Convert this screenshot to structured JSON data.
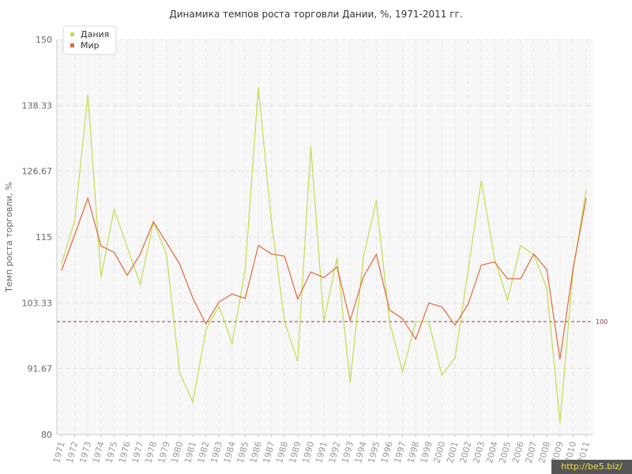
{
  "chart_data": {
    "type": "line",
    "title": "Динамика темпов роста торговли Дании, %, 1971-2011 гг.",
    "ylabel": "Темп роста торговли, %",
    "xlabel": "",
    "ylim": [
      80,
      150
    ],
    "yticks": [
      "80",
      "91.67",
      "103.33",
      "115",
      "126.67",
      "138.33",
      "150"
    ],
    "ytick_values": [
      80,
      91.67,
      103.33,
      115,
      126.67,
      138.33,
      150
    ],
    "grid": true,
    "legend_position": "top-left",
    "reference_line": {
      "value": 100,
      "label": "100",
      "color": "#8b3a4a"
    },
    "x": [
      "1971",
      "1972",
      "1973",
      "1974",
      "1975",
      "1976",
      "1977",
      "1978",
      "1979",
      "1980",
      "1981",
      "1982",
      "1983",
      "1984",
      "1985",
      "1986",
      "1987",
      "1988",
      "1989",
      "1990",
      "1991",
      "1992",
      "1993",
      "1994",
      "1995",
      "1996",
      "1997",
      "1998",
      "1999",
      "2000",
      "2001",
      "2002",
      "2003",
      "2004",
      "2005",
      "2006",
      "2007",
      "2008",
      "2009",
      "2010",
      "2011"
    ],
    "series": [
      {
        "name": "Дания",
        "color": "#c3dd4e",
        "values": [
          110.3,
          117.9,
          140.3,
          107.9,
          119.9,
          113.2,
          106.6,
          117.7,
          111.9,
          91.0,
          85.7,
          98.5,
          102.8,
          96.1,
          109.3,
          141.5,
          117.7,
          100.0,
          92.9,
          131.1,
          100.0,
          111.3,
          89.2,
          111.3,
          121.5,
          100.0,
          91.1,
          100.0,
          100.0,
          90.5,
          93.6,
          109.1,
          125.0,
          111.3,
          103.8,
          113.5,
          111.9,
          105.9,
          82.0,
          109.1,
          123.4
        ]
      },
      {
        "name": "Мир",
        "color": "#e0693a",
        "values": [
          109.1,
          115.4,
          121.9,
          113.4,
          112.3,
          108.2,
          112.0,
          117.7,
          114.0,
          110.2,
          104.2,
          99.6,
          103.5,
          104.9,
          104.1,
          113.5,
          112.0,
          111.6,
          104.0,
          108.8,
          107.8,
          109.7,
          100.2,
          107.9,
          111.9,
          102.1,
          100.5,
          96.9,
          103.3,
          102.6,
          99.4,
          103.1,
          110.0,
          110.6,
          107.6,
          107.6,
          112.0,
          109.2,
          93.3,
          109.4,
          121.9
        ]
      }
    ]
  },
  "watermark": "http://be5.biz/"
}
